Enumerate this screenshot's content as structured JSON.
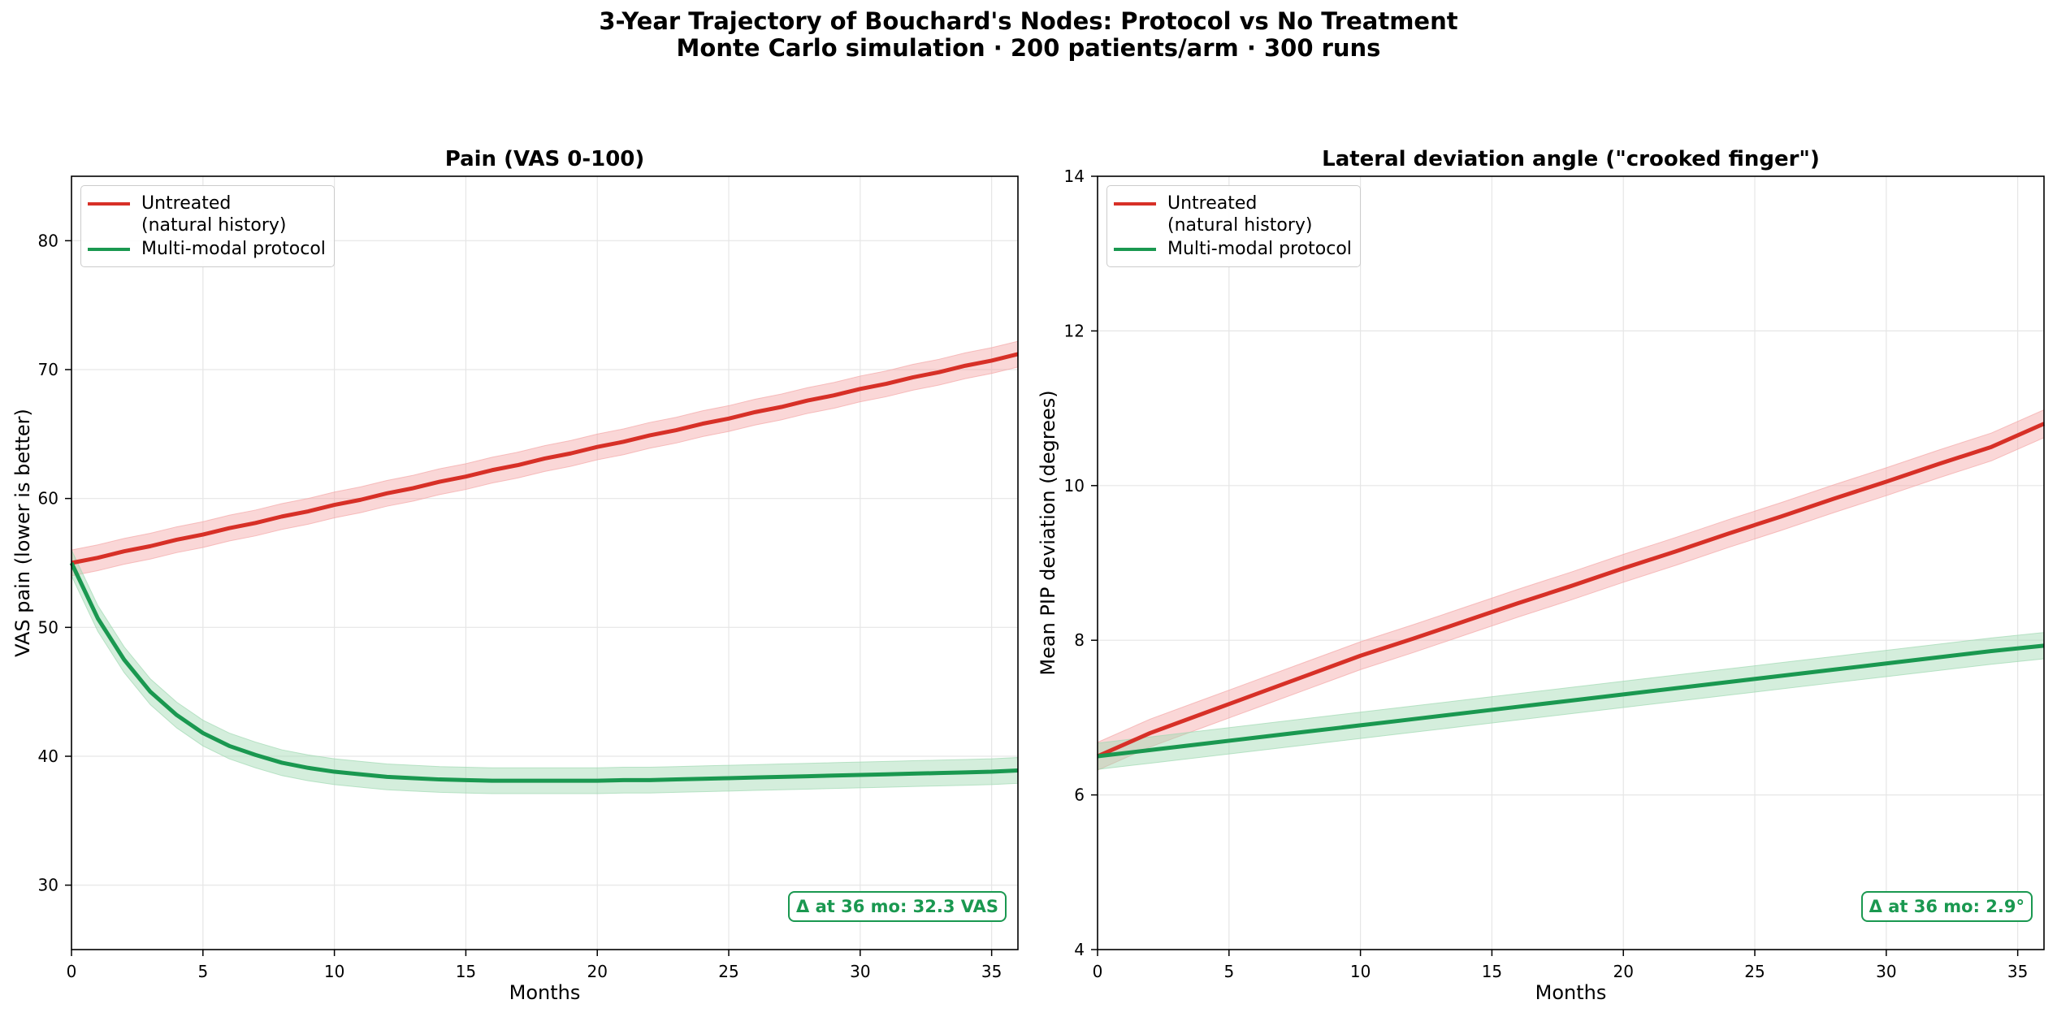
{
  "suptitle": {
    "line1": "3-Year Trajectory of Bouchard's Nodes: Protocol vs No Treatment",
    "line2": "Monte Carlo simulation · 200 patients/arm · 300 runs"
  },
  "colors": {
    "untreated": "#d73027",
    "protocol": "#1a9850",
    "untreated_band": "#f4a6a6",
    "protocol_band": "#9fd9b2"
  },
  "chart_data": [
    {
      "type": "line",
      "title": "Pain (VAS 0-100)",
      "xlabel": "Months",
      "ylabel": "VAS pain (lower is better)",
      "xlim": [
        0,
        36
      ],
      "ylim": [
        25,
        85
      ],
      "xticks": [
        0,
        5,
        10,
        15,
        20,
        25,
        30,
        35
      ],
      "yticks": [
        30,
        40,
        50,
        60,
        70,
        80
      ],
      "grid": true,
      "legend_position": "top-left",
      "annotation": "Δ at 36 mo: 32.3 VAS",
      "x": [
        0,
        1,
        2,
        3,
        4,
        5,
        6,
        7,
        8,
        9,
        10,
        11,
        12,
        13,
        14,
        15,
        16,
        17,
        18,
        19,
        20,
        21,
        22,
        23,
        24,
        25,
        26,
        27,
        28,
        29,
        30,
        31,
        32,
        33,
        34,
        35,
        36
      ],
      "series": [
        {
          "name": "Untreated\n(natural history)",
          "color": "#d73027",
          "values": [
            55.0,
            55.4,
            55.9,
            56.3,
            56.8,
            57.2,
            57.7,
            58.1,
            58.6,
            59.0,
            59.5,
            59.9,
            60.4,
            60.8,
            61.3,
            61.7,
            62.2,
            62.6,
            63.1,
            63.5,
            64.0,
            64.4,
            64.9,
            65.3,
            65.8,
            66.2,
            66.7,
            67.1,
            67.6,
            68.0,
            68.5,
            68.9,
            69.4,
            69.8,
            70.3,
            70.7,
            71.2
          ],
          "band": 1.0
        },
        {
          "name": "Multi-modal protocol",
          "color": "#1a9850",
          "values": [
            55.0,
            50.7,
            47.5,
            45.0,
            43.2,
            41.8,
            40.8,
            40.1,
            39.5,
            39.1,
            38.8,
            38.6,
            38.4,
            38.3,
            38.2,
            38.15,
            38.1,
            38.1,
            38.1,
            38.1,
            38.1,
            38.15,
            38.15,
            38.2,
            38.25,
            38.3,
            38.35,
            38.4,
            38.45,
            38.5,
            38.55,
            38.6,
            38.65,
            38.7,
            38.75,
            38.8,
            38.9
          ],
          "band": 1.0
        }
      ]
    },
    {
      "type": "line",
      "title": "Lateral deviation angle (\"crooked finger\")",
      "xlabel": "Months",
      "ylabel": "Mean PIP deviation (degrees)",
      "xlim": [
        0,
        36
      ],
      "ylim": [
        4,
        14
      ],
      "xticks": [
        0,
        5,
        10,
        15,
        20,
        25,
        30,
        35
      ],
      "yticks": [
        4,
        6,
        8,
        10,
        12,
        14
      ],
      "grid": true,
      "legend_position": "top-left",
      "annotation": "Δ at 36 mo: 2.9°",
      "x": [
        0,
        2,
        4,
        6,
        8,
        10,
        12,
        14,
        16,
        18,
        20,
        22,
        24,
        26,
        28,
        30,
        32,
        34,
        36
      ],
      "series": [
        {
          "name": "Untreated\n(natural history)",
          "color": "#d73027",
          "values": [
            6.5,
            6.8,
            7.05,
            7.3,
            7.55,
            7.8,
            8.02,
            8.25,
            8.48,
            8.7,
            8.93,
            9.15,
            9.38,
            9.6,
            9.83,
            10.05,
            10.28,
            10.5,
            10.8
          ],
          "band": 0.18
        },
        {
          "name": "Multi-modal protocol",
          "color": "#1a9850",
          "values": [
            6.5,
            6.58,
            6.66,
            6.74,
            6.82,
            6.9,
            6.98,
            7.06,
            7.14,
            7.22,
            7.3,
            7.38,
            7.46,
            7.54,
            7.62,
            7.7,
            7.78,
            7.86,
            7.93
          ],
          "band": 0.17
        }
      ]
    }
  ]
}
